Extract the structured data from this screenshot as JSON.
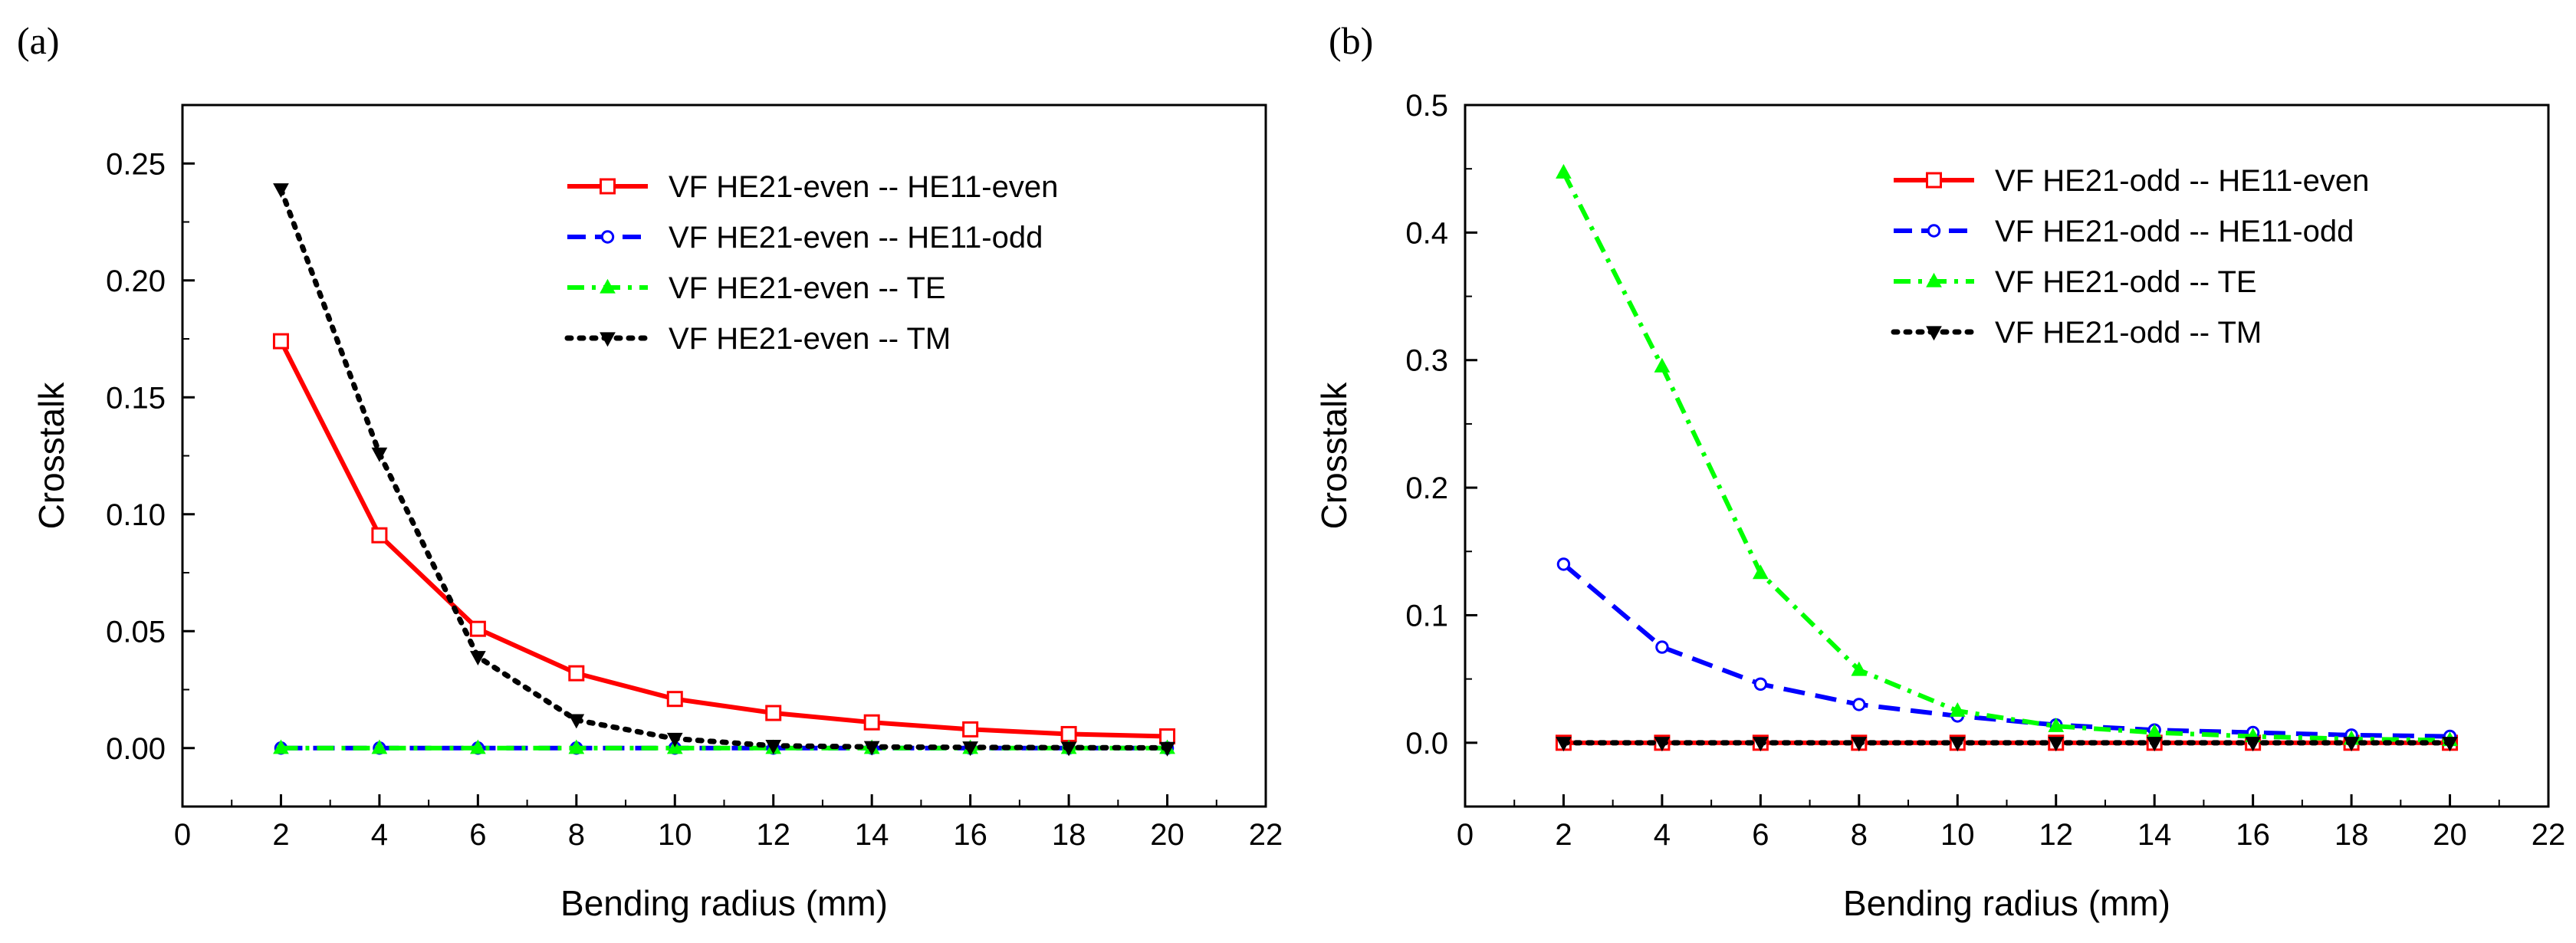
{
  "chart_data": [
    {
      "panel_label": "(a)",
      "type": "line",
      "xlabel": "Bending radius (mm)",
      "ylabel": "Crosstalk",
      "xlim": [
        0,
        22
      ],
      "ylim": [
        -0.025,
        0.275
      ],
      "xticks": [
        0,
        2,
        4,
        6,
        8,
        10,
        12,
        14,
        16,
        18,
        20,
        22
      ],
      "xtick_labels": [
        "0",
        "2",
        "4",
        "6",
        "8",
        "10",
        "12",
        "14",
        "16",
        "18",
        "20",
        "22"
      ],
      "yticks": [
        0,
        0.05,
        0.1,
        0.15,
        0.2,
        0.25
      ],
      "ytick_labels": [
        "0.00",
        "0.05",
        "0.10",
        "0.15",
        "0.20",
        "0.25"
      ],
      "legend_position": "top-right",
      "x": [
        2,
        4,
        6,
        8,
        10,
        12,
        14,
        16,
        18,
        20
      ],
      "series": [
        {
          "name": "VF HE21-even -- HE11-even",
          "color": "#ff0000",
          "marker": "square",
          "dash": "solid",
          "values": [
            0.174,
            0.091,
            0.051,
            0.032,
            0.021,
            0.015,
            0.011,
            0.008,
            0.006,
            0.005
          ]
        },
        {
          "name": "VF HE21-even -- HE11-odd",
          "color": "#0000ff",
          "marker": "circle",
          "dash": "dash",
          "values": [
            0,
            0,
            0,
            0,
            0,
            0,
            0,
            0,
            0,
            0
          ]
        },
        {
          "name": "VF HE21-even -- TE",
          "color": "#00ff00",
          "marker": "triangle-up",
          "dash": "dashdot",
          "values": [
            0,
            0,
            0,
            0,
            0,
            0,
            0,
            0,
            0,
            0
          ]
        },
        {
          "name": "VF HE21-even -- TM",
          "color": "#000000",
          "marker": "triangle-down",
          "dash": "dot",
          "values": [
            0.239,
            0.126,
            0.039,
            0.012,
            0.004,
            0.001,
            0.0005,
            0.0003,
            0.0002,
            0.0001
          ]
        }
      ]
    },
    {
      "panel_label": "(b)",
      "type": "line",
      "xlabel": "Bending radius (mm)",
      "ylabel": "Crosstalk",
      "xlim": [
        0,
        22
      ],
      "ylim": [
        -0.05,
        0.5
      ],
      "xticks": [
        0,
        2,
        4,
        6,
        8,
        10,
        12,
        14,
        16,
        18,
        20,
        22
      ],
      "xtick_labels": [
        "0",
        "2",
        "4",
        "6",
        "8",
        "10",
        "12",
        "14",
        "16",
        "18",
        "20",
        "22"
      ],
      "yticks": [
        0,
        0.1,
        0.2,
        0.3,
        0.4,
        0.5
      ],
      "ytick_labels": [
        "0.0",
        "0.1",
        "0.2",
        "0.3",
        "0.4",
        "0.5"
      ],
      "legend_position": "top-right",
      "x": [
        2,
        4,
        6,
        8,
        10,
        12,
        14,
        16,
        18,
        20
      ],
      "series": [
        {
          "name": "VF HE21-odd -- HE11-even",
          "color": "#ff0000",
          "marker": "square",
          "dash": "solid",
          "values": [
            0,
            0,
            0,
            0,
            0,
            0,
            0,
            0,
            0,
            0
          ]
        },
        {
          "name": "VF HE21-odd -- HE11-odd",
          "color": "#0000ff",
          "marker": "circle",
          "dash": "dash",
          "values": [
            0.14,
            0.075,
            0.046,
            0.03,
            0.021,
            0.014,
            0.01,
            0.008,
            0.006,
            0.005
          ]
        },
        {
          "name": "VF HE21-odd -- TE",
          "color": "#00ff00",
          "marker": "triangle-up",
          "dash": "dashdot",
          "values": [
            0.447,
            0.295,
            0.133,
            0.057,
            0.025,
            0.013,
            0.008,
            0.005,
            0.003,
            0.002
          ]
        },
        {
          "name": "VF HE21-odd -- TM",
          "color": "#000000",
          "marker": "triangle-down",
          "dash": "dot",
          "values": [
            0,
            0,
            0,
            0,
            0,
            0,
            0,
            0,
            0,
            0
          ]
        }
      ]
    }
  ]
}
